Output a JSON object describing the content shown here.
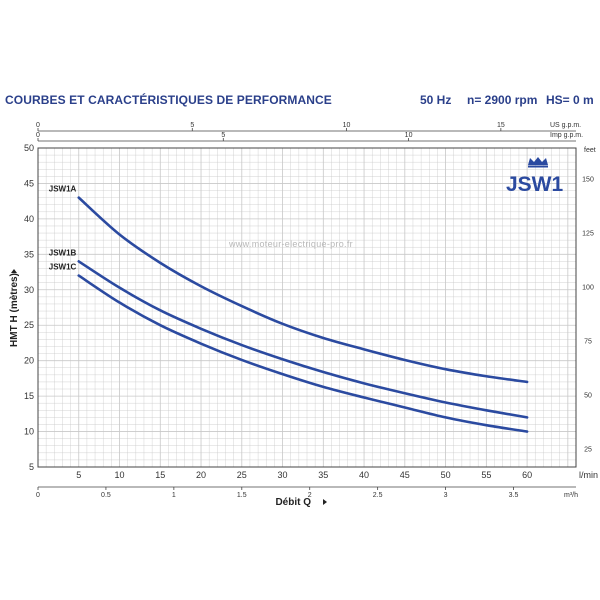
{
  "header": {
    "title": "COURBES ET CARACTÉRISTIQUES DE PERFORMANCE",
    "frequency": "50 Hz",
    "speed": "n= 2900 rpm",
    "hs": "HS= 0 m"
  },
  "brand": {
    "model": "JSW1",
    "watermark": "www.moteur-electrique-pro.fr"
  },
  "colors": {
    "curve": "#2b4aa0",
    "brand": "#2b4aa0",
    "grid": "#c8c8c8",
    "text": "#2a3f8a"
  },
  "chart_data": {
    "type": "line",
    "title": "",
    "xlabel": "Débit Q",
    "ylabel": "HMT H (mètres)",
    "x_unit": "l/min",
    "xlim": [
      0,
      66
    ],
    "ylim": [
      5,
      50
    ],
    "x_ticks": [
      0,
      5,
      10,
      15,
      20,
      25,
      30,
      35,
      40,
      45,
      50,
      55,
      60
    ],
    "y_ticks": [
      5,
      10,
      15,
      20,
      25,
      30,
      35,
      40,
      45,
      50
    ],
    "secondary_axes": {
      "top_us_gpm": {
        "label": "US g.p.m.",
        "ticks": [
          0,
          5,
          10,
          15
        ]
      },
      "top_imp_gpm": {
        "label": "Imp g.p.m.",
        "ticks": [
          0,
          5,
          10
        ]
      },
      "bottom_m3h": {
        "label": "m³/h",
        "ticks": [
          0,
          0.5,
          1,
          1.5,
          2,
          2.5,
          3,
          3.5
        ]
      },
      "right_feet": {
        "label": "feet",
        "ticks": [
          25,
          50,
          75,
          100,
          125,
          150
        ]
      }
    },
    "grid": true,
    "series": [
      {
        "name": "JSW1A",
        "x": [
          5,
          10,
          15,
          20,
          25,
          30,
          35,
          40,
          45,
          50,
          55,
          60
        ],
        "y": [
          43,
          37.8,
          33.8,
          30.5,
          27.7,
          25.2,
          23.2,
          21.6,
          20.1,
          18.8,
          17.8,
          17
        ]
      },
      {
        "name": "JSW1B",
        "x": [
          5,
          10,
          15,
          20,
          25,
          30,
          35,
          40,
          45,
          50,
          55,
          60
        ],
        "y": [
          34,
          30.3,
          27.1,
          24.5,
          22.2,
          20.2,
          18.4,
          16.8,
          15.4,
          14.1,
          13,
          12
        ]
      },
      {
        "name": "JSW1C",
        "x": [
          5,
          10,
          15,
          20,
          25,
          30,
          35,
          40,
          45,
          50,
          55,
          60
        ],
        "y": [
          32,
          28.2,
          25,
          22.4,
          20.1,
          18.1,
          16.3,
          14.8,
          13.4,
          12,
          10.9,
          10
        ]
      }
    ]
  }
}
